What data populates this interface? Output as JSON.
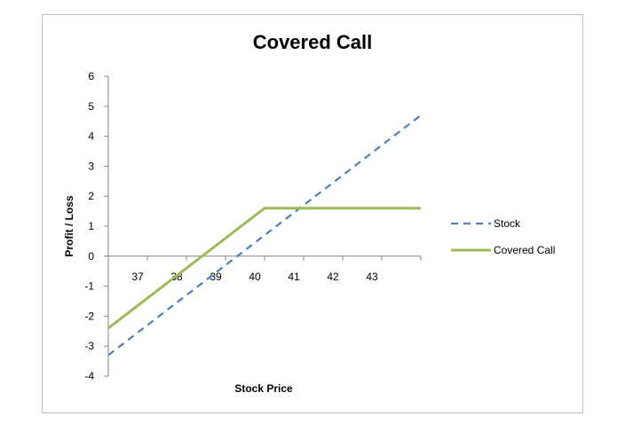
{
  "chart_data": {
    "type": "line",
    "title": "Covered Call",
    "xlabel": "Stock Price",
    "ylabel": "Profit / Loss",
    "xlim": [
      36,
      44
    ],
    "ylim": [
      -4,
      6
    ],
    "x_ticks": [
      37,
      38,
      39,
      40,
      41,
      42,
      43
    ],
    "y_ticks": [
      -4,
      -3,
      -2,
      -1,
      0,
      1,
      2,
      3,
      4,
      5,
      6
    ],
    "grid": false,
    "legend_position": "right",
    "series": [
      {
        "name": "Stock",
        "style": "dashed",
        "color": "#4f81bd",
        "x": [
          36,
          44
        ],
        "y": [
          -3.3,
          4.7
        ]
      },
      {
        "name": "Covered Call",
        "style": "solid",
        "color": "#9bbb59",
        "x": [
          36,
          40,
          44
        ],
        "y": [
          -2.4,
          1.6,
          1.6
        ]
      }
    ]
  }
}
